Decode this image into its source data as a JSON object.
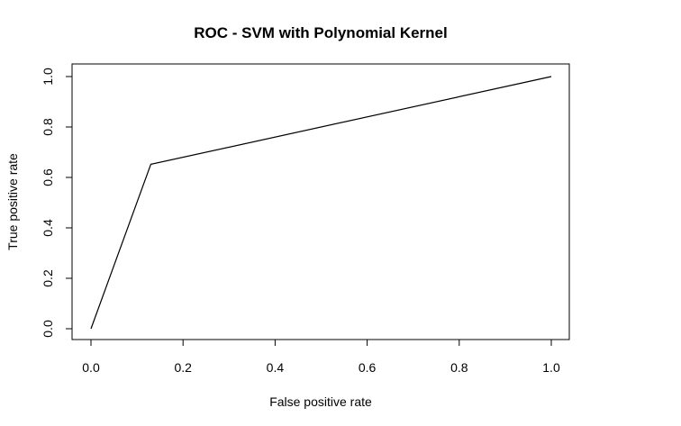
{
  "chart_data": {
    "type": "line",
    "title": "ROC - SVM with Polynomial Kernel",
    "xlabel": "False positive rate",
    "ylabel": "True positive rate",
    "xlim": [
      0,
      1
    ],
    "ylim": [
      0,
      1
    ],
    "x_ticks": [
      0.0,
      0.2,
      0.4,
      0.6,
      0.8,
      1.0
    ],
    "y_ticks": [
      0.0,
      0.2,
      0.4,
      0.6,
      0.8,
      1.0
    ],
    "x_tick_labels": [
      "0.0",
      "0.2",
      "0.4",
      "0.6",
      "0.8",
      "1.0"
    ],
    "y_tick_labels": [
      "0.0",
      "0.2",
      "0.4",
      "0.6",
      "0.8",
      "1.0"
    ],
    "grid": false,
    "legend": null,
    "series": [
      {
        "x": [
          0.0,
          0.13,
          1.0
        ],
        "y": [
          0.0,
          0.652,
          1.0
        ],
        "color": "#000000"
      }
    ]
  }
}
